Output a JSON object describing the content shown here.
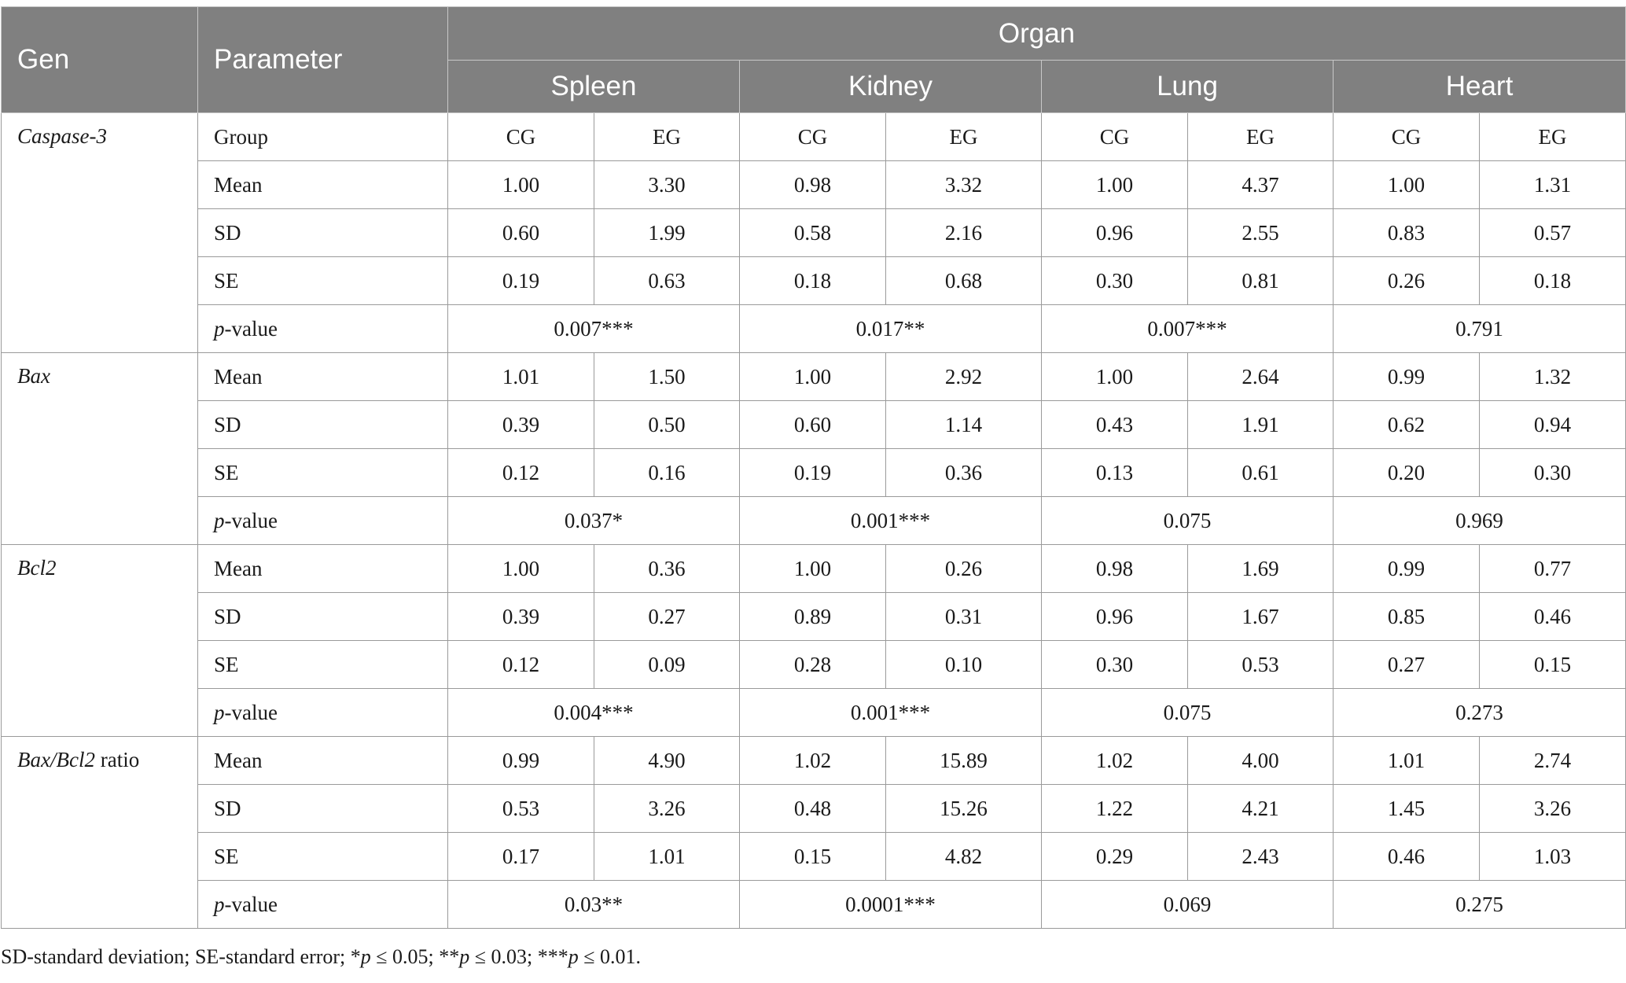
{
  "header": {
    "gen_label": "Gen",
    "parameter_label": "Parameter",
    "organ_label": "Organ",
    "organs": [
      "Spleen",
      "Kidney",
      "Lung",
      "Heart"
    ]
  },
  "genes": [
    {
      "name": "Caspase-3",
      "rows": [
        {
          "param": "Group",
          "values": [
            "CG",
            "EG",
            "CG",
            "EG",
            "CG",
            "EG",
            "CG",
            "EG"
          ]
        },
        {
          "param": "Mean",
          "values": [
            "1.00",
            "3.30",
            "0.98",
            "3.32",
            "1.00",
            "4.37",
            "1.00",
            "1.31"
          ]
        },
        {
          "param": "SD",
          "values": [
            "0.60",
            "1.99",
            "0.58",
            "2.16",
            "0.96",
            "2.55",
            "0.83",
            "0.57"
          ]
        },
        {
          "param": "SE",
          "values": [
            "0.19",
            "0.63",
            "0.18",
            "0.68",
            "0.30",
            "0.81",
            "0.26",
            "0.18"
          ]
        }
      ],
      "pvalues": [
        "0.007***",
        "0.017**",
        "0.007***",
        "0.791"
      ]
    },
    {
      "name": "Bax",
      "rows": [
        {
          "param": "Mean",
          "values": [
            "1.01",
            "1.50",
            "1.00",
            "2.92",
            "1.00",
            "2.64",
            "0.99",
            "1.32"
          ]
        },
        {
          "param": "SD",
          "values": [
            "0.39",
            "0.50",
            "0.60",
            "1.14",
            "0.43",
            "1.91",
            "0.62",
            "0.94"
          ]
        },
        {
          "param": "SE",
          "values": [
            "0.12",
            "0.16",
            "0.19",
            "0.36",
            "0.13",
            "0.61",
            "0.20",
            "0.30"
          ]
        }
      ],
      "pvalues": [
        "0.037*",
        "0.001***",
        "0.075",
        "0.969"
      ]
    },
    {
      "name": "Bcl2",
      "rows": [
        {
          "param": "Mean",
          "values": [
            "1.00",
            "0.36",
            "1.00",
            "0.26",
            "0.98",
            "1.69",
            "0.99",
            "0.77"
          ]
        },
        {
          "param": "SD",
          "values": [
            "0.39",
            "0.27",
            "0.89",
            "0.31",
            "0.96",
            "1.67",
            "0.85",
            "0.46"
          ]
        },
        {
          "param": "SE",
          "values": [
            "0.12",
            "0.09",
            "0.28",
            "0.10",
            "0.30",
            "0.53",
            "0.27",
            "0.15"
          ]
        }
      ],
      "pvalues": [
        "0.004***",
        "0.001***",
        "0.075",
        "0.273"
      ]
    },
    {
      "name": "Bax/Bcl2",
      "name_suffix": " ratio",
      "rows": [
        {
          "param": "Mean",
          "values": [
            "0.99",
            "4.90",
            "1.02",
            "15.89",
            "1.02",
            "4.00",
            "1.01",
            "2.74"
          ]
        },
        {
          "param": "SD",
          "values": [
            "0.53",
            "3.26",
            "0.48",
            "15.26",
            "1.22",
            "4.21",
            "1.45",
            "3.26"
          ]
        },
        {
          "param": "SE",
          "values": [
            "0.17",
            "1.01",
            "0.15",
            "4.82",
            "0.29",
            "2.43",
            "0.46",
            "1.03"
          ]
        }
      ],
      "pvalues": [
        "0.03**",
        "0.0001***",
        "0.069",
        "0.275"
      ]
    }
  ],
  "pvalue_label": {
    "italic": "p",
    "rest": "-value"
  },
  "footnote": {
    "text1": "SD-standard deviation; SE-standard error; *",
    "p1": "p",
    "text2": " ≤ 0.05; **",
    "p2": "p",
    "text3": " ≤ 0.03; ***",
    "p3": "p",
    "text4": " ≤ 0.01."
  }
}
